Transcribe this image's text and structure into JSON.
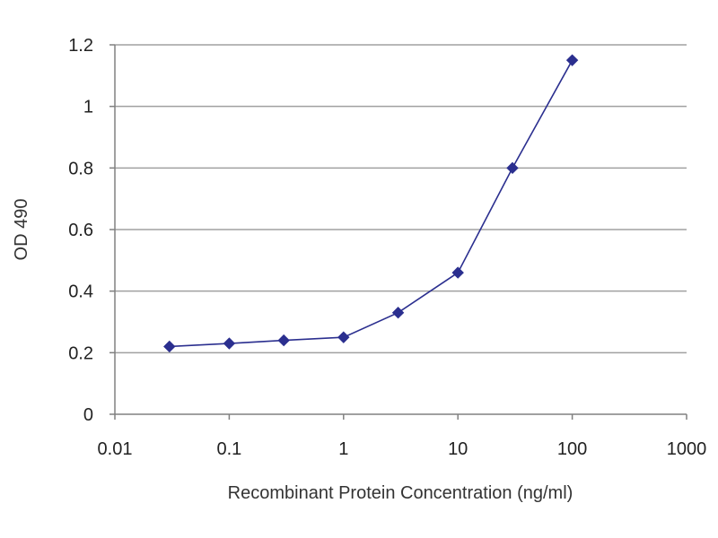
{
  "chart_data": {
    "type": "line",
    "title": "",
    "xlabel": "Recombinant Protein Concentration (ng/ml)",
    "ylabel": "OD 490",
    "x_scale": "log",
    "xlim": [
      0.01,
      1000
    ],
    "ylim": [
      0,
      1.2
    ],
    "x_ticks": [
      "0.01",
      "0.1",
      "1",
      "10",
      "100",
      "1000"
    ],
    "y_ticks": [
      "0",
      "0.2",
      "0.4",
      "0.6",
      "0.8",
      "1",
      "1.2"
    ],
    "grid": "horizontal",
    "series": [
      {
        "x": [
          0.03,
          0.1,
          0.3,
          1,
          3,
          10,
          30,
          100
        ],
        "y": [
          0.22,
          0.23,
          0.24,
          0.25,
          0.33,
          0.46,
          0.8,
          1.15
        ]
      }
    ],
    "colors": {
      "series": "#2b2f8f",
      "grid": "#a0a0a0",
      "axis": "#808080"
    }
  }
}
